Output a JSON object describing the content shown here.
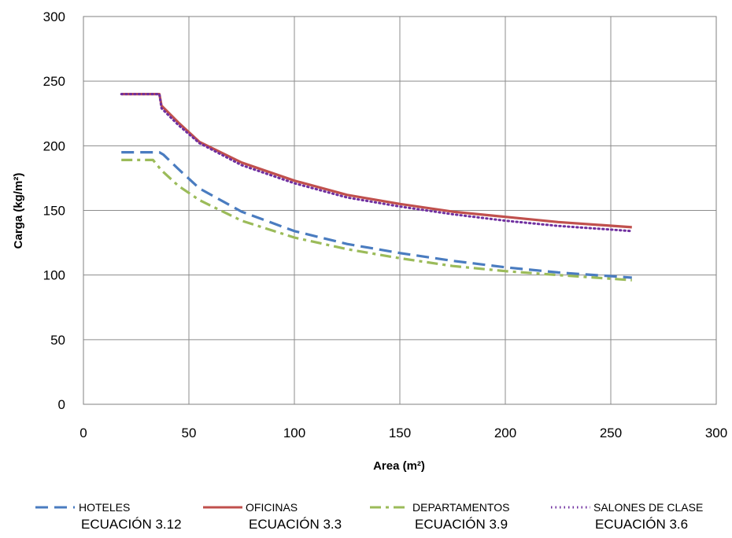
{
  "chart_data": {
    "type": "line",
    "xlabel": "Area (m²)",
    "ylabel": "Carga (kg/m²)",
    "xlim": [
      0,
      300
    ],
    "ylim": [
      0,
      300
    ],
    "x_ticks": [
      0,
      50,
      100,
      150,
      200,
      250,
      300
    ],
    "y_ticks": [
      0,
      50,
      100,
      150,
      200,
      250,
      300
    ],
    "grid": true,
    "legend_position": "bottom",
    "series": [
      {
        "name": "HOTELES",
        "equation": "ECUACIÓN 3.12",
        "color": "#4a7cc0",
        "style": "dashed",
        "x": [
          18,
          36,
          38,
          45,
          55,
          75,
          100,
          125,
          150,
          175,
          200,
          225,
          260
        ],
        "y": [
          195,
          195,
          193,
          182,
          167,
          149,
          134,
          124,
          117,
          111,
          106,
          102,
          98
        ]
      },
      {
        "name": "OFICINAS",
        "equation": "ECUACIÓN 3.3",
        "color": "#c0504d",
        "style": "solid",
        "x": [
          18,
          36,
          37,
          45,
          55,
          75,
          100,
          125,
          150,
          175,
          200,
          225,
          260
        ],
        "y": [
          240,
          240,
          231,
          218,
          203,
          187,
          173,
          162,
          155,
          149,
          145,
          141,
          137
        ]
      },
      {
        "name": "DEPARTAMENTOS",
        "equation": "ECUACIÓN 3.9",
        "color": "#9bbb59",
        "style": "dashdot",
        "x": [
          18,
          33,
          37,
          45,
          55,
          75,
          100,
          125,
          150,
          175,
          200,
          225,
          260
        ],
        "y": [
          189,
          189,
          181,
          169,
          158,
          142,
          129,
          120,
          113,
          107,
          103,
          100,
          96
        ]
      },
      {
        "name": "SALONES DE CLASE",
        "equation": "ECUACIÓN 3.6",
        "color": "#7030a0",
        "style": "dotted",
        "x": [
          18,
          36,
          37,
          45,
          55,
          75,
          100,
          125,
          150,
          175,
          200,
          225,
          260
        ],
        "y": [
          240,
          240,
          229,
          216,
          202,
          185,
          171,
          160,
          153,
          147,
          142,
          138,
          134
        ]
      }
    ]
  }
}
